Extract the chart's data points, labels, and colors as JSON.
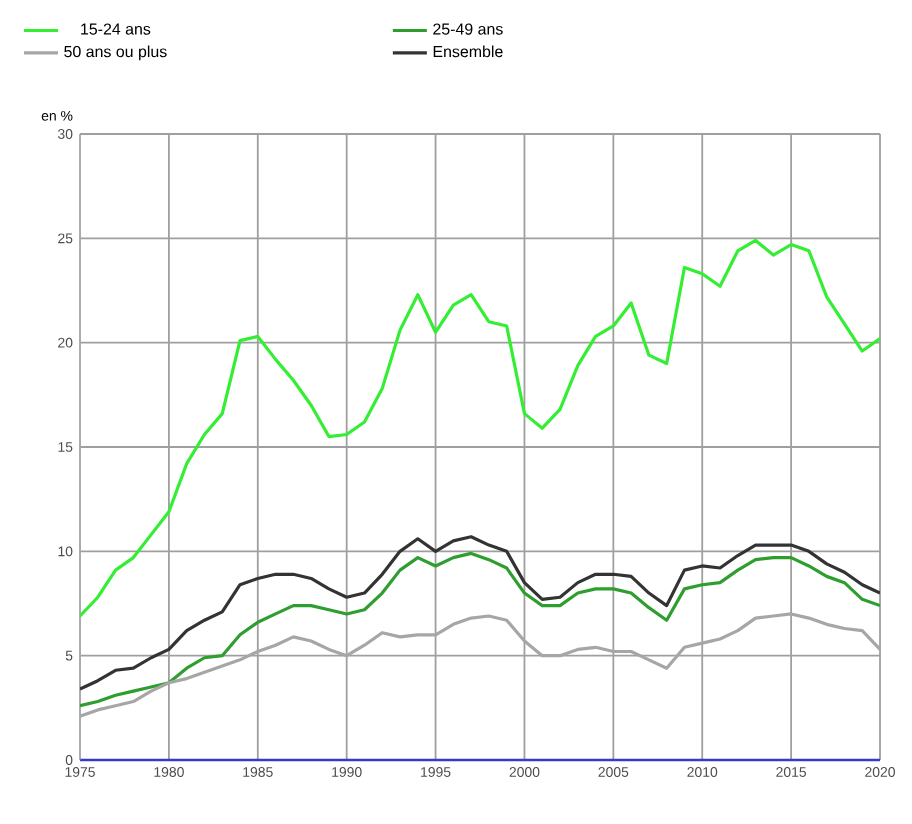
{
  "chart_data": {
    "type": "line",
    "ylabel": "en %",
    "x": [
      1975,
      1976,
      1977,
      1978,
      1979,
      1980,
      1981,
      1982,
      1983,
      1984,
      1985,
      1986,
      1987,
      1988,
      1989,
      1990,
      1991,
      1992,
      1993,
      1994,
      1995,
      1996,
      1997,
      1998,
      1999,
      2000,
      2001,
      2002,
      2003,
      2004,
      2005,
      2006,
      2007,
      2008,
      2009,
      2010,
      2011,
      2012,
      2013,
      2014,
      2015,
      2016,
      2017,
      2018,
      2019,
      2020
    ],
    "series": [
      {
        "name": "15-24 ans",
        "color": "#33ee33",
        "values": [
          6.9,
          7.8,
          9.1,
          9.7,
          10.8,
          11.9,
          14.2,
          15.6,
          16.6,
          20.1,
          20.3,
          19.2,
          18.2,
          17.0,
          15.5,
          15.6,
          16.2,
          17.8,
          20.6,
          22.3,
          20.5,
          21.8,
          22.3,
          21.0,
          20.8,
          16.6,
          15.9,
          16.8,
          18.9,
          20.3,
          20.8,
          21.9,
          19.4,
          19.0,
          23.6,
          23.3,
          22.7,
          24.4,
          24.9,
          24.2,
          24.7,
          24.4,
          22.2,
          20.9,
          19.6,
          20.2
        ]
      },
      {
        "name": "25-49 ans",
        "color": "#2e9e2e",
        "values": [
          2.6,
          2.8,
          3.1,
          3.3,
          3.5,
          3.7,
          4.4,
          4.9,
          5.0,
          6.0,
          6.6,
          7.0,
          7.4,
          7.4,
          7.2,
          7.0,
          7.2,
          8.0,
          9.1,
          9.7,
          9.3,
          9.7,
          9.9,
          9.6,
          9.2,
          8.0,
          7.4,
          7.4,
          8.0,
          8.2,
          8.2,
          8.0,
          7.3,
          6.7,
          8.2,
          8.4,
          8.5,
          9.1,
          9.6,
          9.7,
          9.7,
          9.3,
          8.8,
          8.5,
          7.7,
          7.4
        ]
      },
      {
        "name": "50 ans ou plus",
        "color": "#a6a6a6",
        "values": [
          2.1,
          2.4,
          2.6,
          2.8,
          3.3,
          3.7,
          3.9,
          4.2,
          4.5,
          4.8,
          5.2,
          5.5,
          5.9,
          5.7,
          5.3,
          5.0,
          5.5,
          6.1,
          5.9,
          6.0,
          6.0,
          6.5,
          6.8,
          6.9,
          6.7,
          5.7,
          5.0,
          5.0,
          5.3,
          5.4,
          5.2,
          5.2,
          4.8,
          4.4,
          5.4,
          5.6,
          5.8,
          6.2,
          6.8,
          6.9,
          7.0,
          6.8,
          6.5,
          6.3,
          6.2,
          5.3
        ]
      },
      {
        "name": "Ensemble",
        "color": "#333333",
        "values": [
          3.4,
          3.8,
          4.3,
          4.4,
          4.9,
          5.3,
          6.2,
          6.7,
          7.1,
          8.4,
          8.7,
          8.9,
          8.9,
          8.7,
          8.2,
          7.8,
          8.0,
          8.9,
          10.0,
          10.6,
          10.0,
          10.5,
          10.7,
          10.3,
          10.0,
          8.5,
          7.7,
          7.8,
          8.5,
          8.9,
          8.9,
          8.8,
          8.0,
          7.4,
          9.1,
          9.3,
          9.2,
          9.8,
          10.3,
          10.3,
          10.3,
          10.0,
          9.4,
          9.0,
          8.4,
          8.0
        ]
      }
    ],
    "xlim": [
      1975,
      2020
    ],
    "xticks": [
      1975,
      1980,
      1985,
      1990,
      1995,
      2000,
      2005,
      2010,
      2015,
      2020
    ],
    "ylim": [
      0,
      30
    ],
    "yticks": [
      0,
      5,
      10,
      15,
      20,
      25,
      30
    ],
    "grid": true,
    "legend": "top",
    "marker": "none",
    "line_style": "solid"
  }
}
